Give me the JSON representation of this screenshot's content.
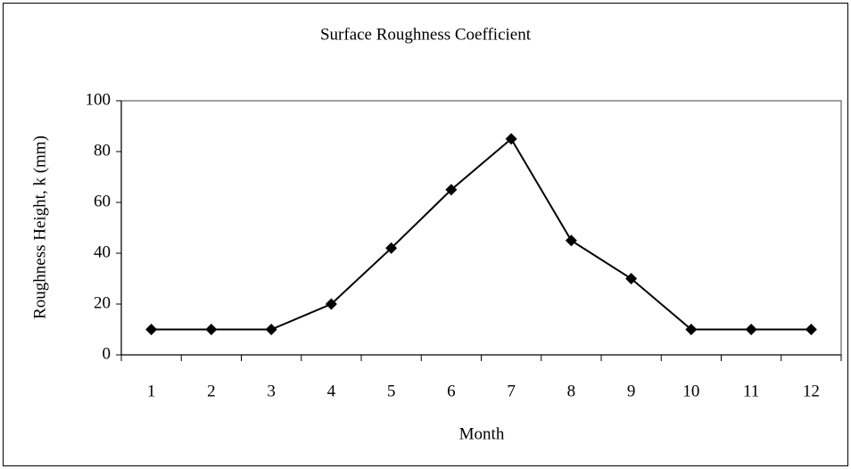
{
  "chart_data": {
    "type": "line",
    "title": "Surface Roughness Coefficient",
    "x_label": "Month",
    "y_label": "Roughness Height, k (mm)",
    "categories": [
      "1",
      "2",
      "3",
      "4",
      "5",
      "6",
      "7",
      "8",
      "9",
      "10",
      "11",
      "12"
    ],
    "series": [
      {
        "name": "Roughness Height",
        "color": "#000000",
        "values": [
          10,
          10,
          10,
          20,
          42,
          65,
          85,
          45,
          30,
          10,
          10,
          10
        ]
      }
    ],
    "ylim": [
      0,
      100
    ],
    "yticks": [
      0,
      20,
      40,
      60,
      80,
      100
    ],
    "grid": false
  }
}
